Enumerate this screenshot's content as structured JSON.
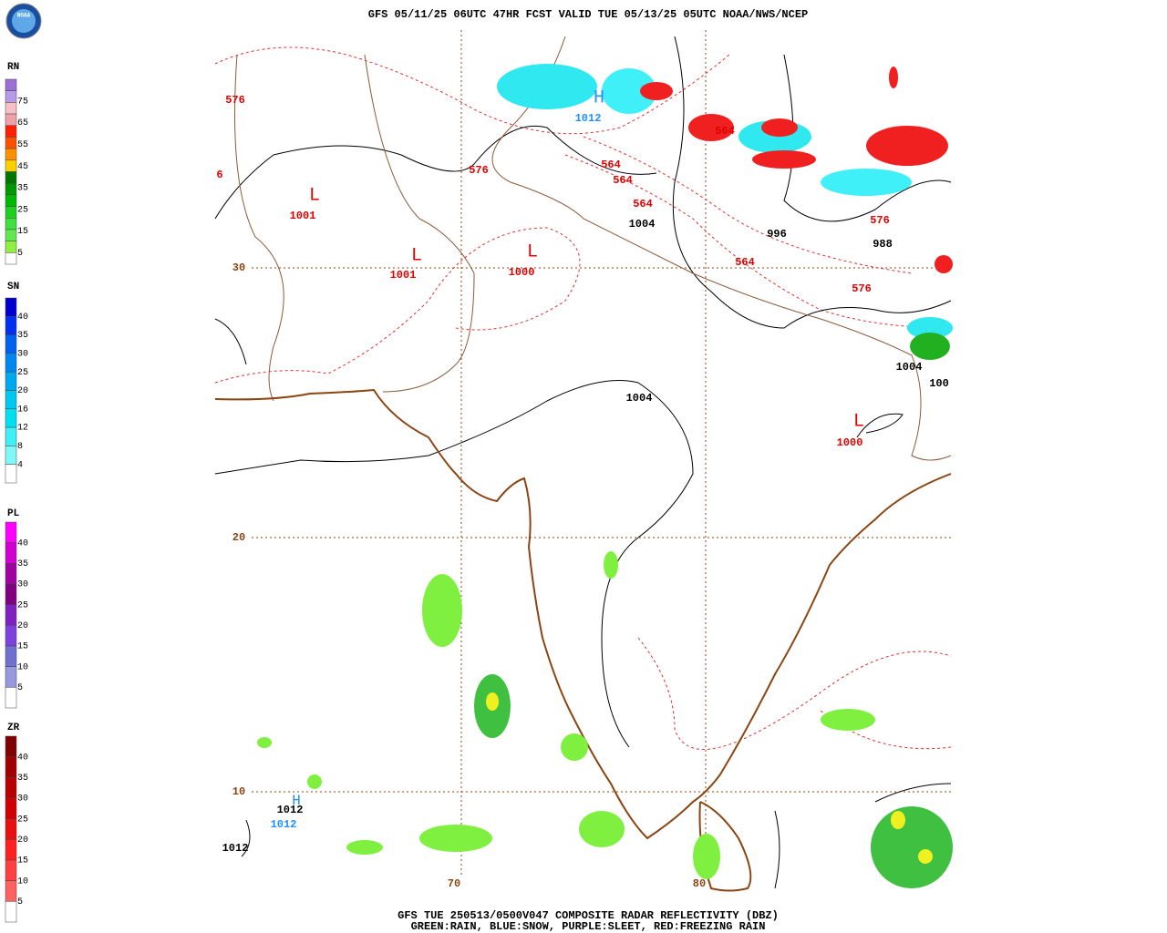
{
  "header": {
    "title": "GFS 05/11/25 06UTC 47HR FCST VALID TUE 05/13/25 05UTC NOAA/NWS/NCEP",
    "logo": "NOAA"
  },
  "legends": [
    {
      "name": "RN",
      "labels": [
        "75",
        "65",
        "55",
        "45",
        "35",
        "25",
        "15",
        "5"
      ],
      "colors": [
        "#9b6fd6",
        "#b89ae8",
        "#f7c0c8",
        "#f0a0a8",
        "#ff2000",
        "#ff5000",
        "#ff9000",
        "#ffd000",
        "#007800",
        "#009800",
        "#00b800",
        "#20d020",
        "#40e040",
        "#60e850",
        "#90f040",
        "#ffffff"
      ]
    },
    {
      "name": "SN",
      "labels": [
        "40",
        "35",
        "30",
        "25",
        "20",
        "16",
        "12",
        "8",
        "4"
      ],
      "colors": [
        "#0000d0",
        "#0030f0",
        "#0060f0",
        "#0088f0",
        "#00a8f0",
        "#00c8f0",
        "#00e0f0",
        "#40f0f8",
        "#80f8f8",
        "#ffffff"
      ]
    },
    {
      "name": "PL",
      "labels": [
        "40",
        "35",
        "30",
        "25",
        "20",
        "15",
        "10",
        "5"
      ],
      "colors": [
        "#ff00ff",
        "#d000d0",
        "#a000a0",
        "#800080",
        "#8020c0",
        "#8040e0",
        "#7070d0",
        "#9898e0",
        "#ffffff"
      ]
    },
    {
      "name": "ZR",
      "labels": [
        "40",
        "35",
        "30",
        "25",
        "20",
        "15",
        "10",
        "5"
      ],
      "colors": [
        "#800000",
        "#a00000",
        "#b80000",
        "#d00000",
        "#e81010",
        "#ff2020",
        "#ff4040",
        "#ff6060",
        "#ffffff"
      ]
    }
  ],
  "map": {
    "lat_labels": [
      "30",
      "20",
      "10"
    ],
    "lon_labels": [
      "70",
      "80"
    ],
    "labels": [
      "576",
      "6",
      "L",
      "1001",
      "576",
      "L",
      "1001",
      "L",
      "1000",
      "564",
      "564",
      "564",
      "564",
      "564",
      "1004",
      "996",
      "576",
      "988",
      "576",
      "H",
      "1012",
      "1004",
      "100",
      "1004",
      "L",
      "1000",
      "H",
      "1012",
      "1012",
      "1012"
    ]
  },
  "footer": {
    "line1": "GFS TUE 250513/0500V047 COMPOSITE RADAR REFLECTIVITY (DBZ)",
    "line2": "GREEN:RAIN, BLUE:SNOW, PURPLE:SLEET, RED:FREEZING RAIN"
  }
}
